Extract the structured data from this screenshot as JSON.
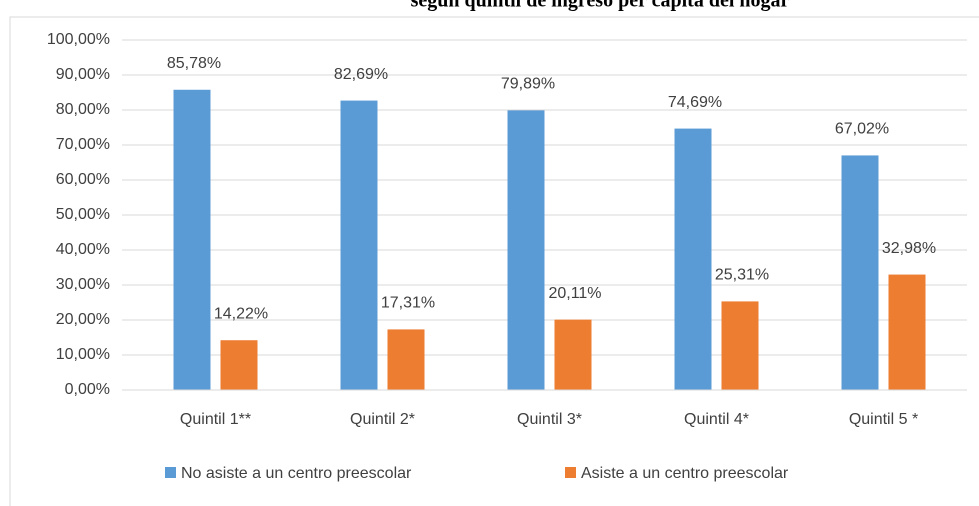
{
  "chart_data": {
    "type": "bar",
    "title": "según quintil de ingreso per cápita del hogar",
    "categories": [
      "Quintil 1**",
      "Quintil 2*",
      "Quintil 3*",
      "Quintil 4*",
      "Quintil 5 *"
    ],
    "series": [
      {
        "name": "No asiste a un centro preescolar",
        "color": "#5b9bd5",
        "values": [
          85.78,
          82.69,
          79.89,
          74.69,
          67.02
        ],
        "value_labels": [
          "85,78%",
          "82,69%",
          "79,89%",
          "74,69%",
          "67,02%"
        ]
      },
      {
        "name": "Asiste a un centro preescolar",
        "color": "#ed7d31",
        "values": [
          14.22,
          17.31,
          20.11,
          25.31,
          32.98
        ],
        "value_labels": [
          "14,22%",
          "17,31%",
          "20,11%",
          "25,31%",
          "32,98%"
        ]
      }
    ],
    "ylim": [
      0,
      100
    ],
    "yticks": [
      {
        "value": 0,
        "label": "0,00%"
      },
      {
        "value": 10,
        "label": "10,00%"
      },
      {
        "value": 20,
        "label": "20,00%"
      },
      {
        "value": 30,
        "label": "30,00%"
      },
      {
        "value": 40,
        "label": "40,00%"
      },
      {
        "value": 50,
        "label": "50,00%"
      },
      {
        "value": 60,
        "label": "60,00%"
      },
      {
        "value": 70,
        "label": "70,00%"
      },
      {
        "value": 80,
        "label": "80,00%"
      },
      {
        "value": 90,
        "label": "90,00%"
      },
      {
        "value": 100,
        "label": "100,00%"
      }
    ],
    "grid": true,
    "legend": "bottom"
  }
}
